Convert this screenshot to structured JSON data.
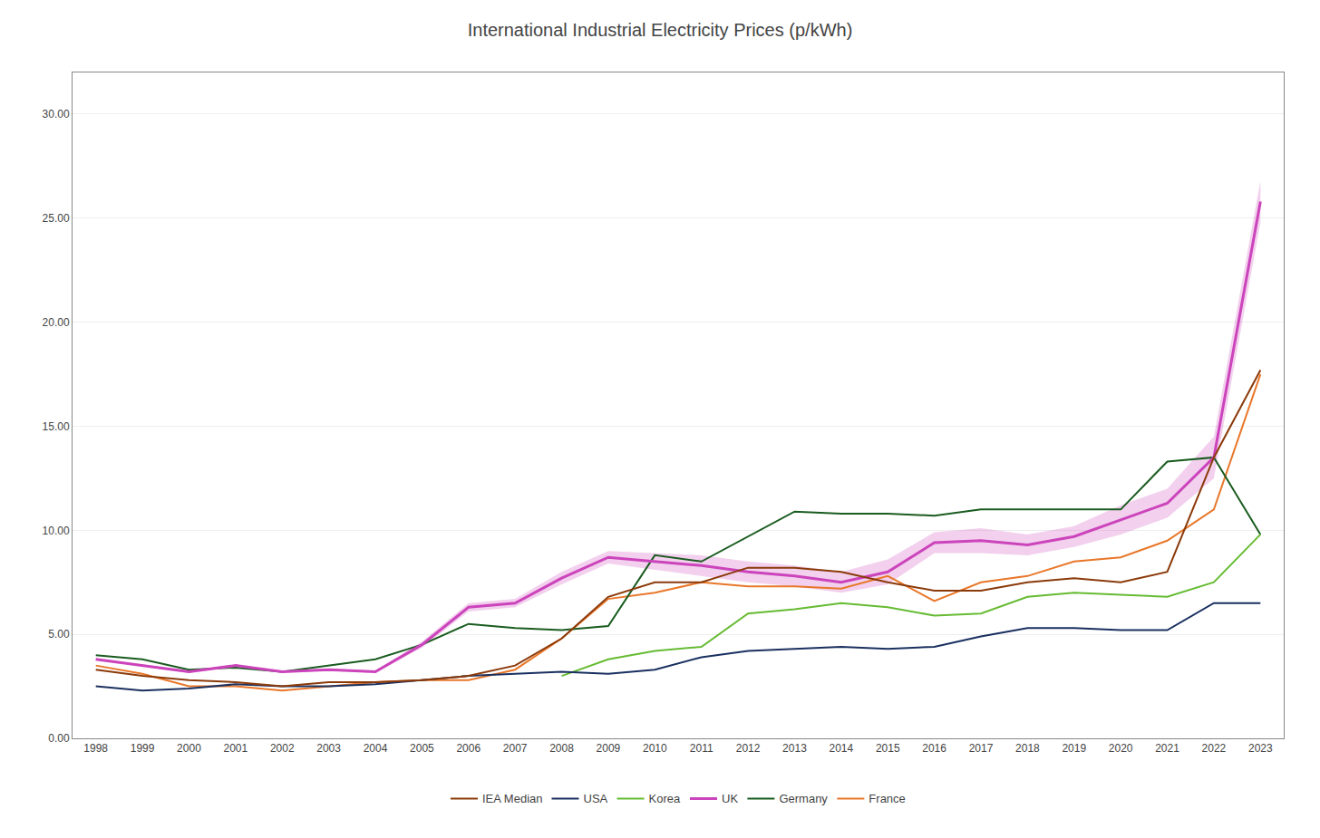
{
  "chart_data": {
    "type": "line",
    "title": "International Industrial Electricity Prices (p/kWh)",
    "x": [
      1998,
      1999,
      2000,
      2001,
      2002,
      2003,
      2004,
      2005,
      2006,
      2007,
      2008,
      2009,
      2010,
      2011,
      2012,
      2013,
      2014,
      2015,
      2016,
      2017,
      2018,
      2019,
      2020,
      2021,
      2022,
      2023
    ],
    "series": [
      {
        "name": "France",
        "color": "#E8772A",
        "values": [
          3.5,
          3.1,
          2.5,
          2.5,
          2.3,
          2.5,
          2.7,
          2.8,
          2.8,
          3.3,
          4.8,
          6.7,
          7.0,
          7.5,
          7.3,
          7.3,
          7.2,
          7.8,
          6.6,
          7.5,
          7.8,
          8.5,
          8.7,
          9.5,
          11.0,
          17.5
        ]
      },
      {
        "name": "Germany",
        "color": "#1A5C20",
        "values": [
          4.0,
          3.8,
          3.3,
          3.4,
          3.2,
          3.5,
          3.8,
          4.5,
          5.5,
          5.3,
          5.2,
          5.4,
          8.8,
          8.5,
          9.7,
          10.9,
          10.8,
          10.8,
          10.7,
          11.0,
          11.0,
          11.0,
          11.0,
          13.3,
          13.5,
          9.8
        ]
      },
      {
        "name": "UK",
        "color": "#CC44BB",
        "values": [
          3.8,
          3.5,
          3.2,
          3.5,
          3.2,
          3.3,
          3.2,
          4.5,
          6.3,
          6.5,
          7.7,
          8.7,
          8.5,
          8.3,
          8.0,
          7.8,
          7.5,
          8.0,
          9.4,
          9.5,
          9.3,
          9.7,
          10.5,
          11.3,
          13.5,
          25.8
        ],
        "upper": [
          3.85,
          3.55,
          3.25,
          3.55,
          3.25,
          3.35,
          3.25,
          4.65,
          6.5,
          6.7,
          8.0,
          9.0,
          8.9,
          8.8,
          8.5,
          8.3,
          8.0,
          8.6,
          9.9,
          10.1,
          9.8,
          10.2,
          11.2,
          12.0,
          14.5,
          26.8
        ],
        "lower": [
          3.75,
          3.45,
          3.15,
          3.45,
          3.15,
          3.25,
          3.15,
          4.35,
          6.1,
          6.3,
          7.4,
          8.4,
          8.1,
          7.8,
          7.5,
          7.3,
          7.0,
          7.4,
          8.9,
          8.9,
          8.8,
          9.2,
          9.8,
          10.6,
          12.5,
          24.8
        ]
      },
      {
        "name": "Korea",
        "color": "#66BB33",
        "values": [
          null,
          null,
          null,
          null,
          null,
          null,
          null,
          null,
          null,
          null,
          3.0,
          3.8,
          4.2,
          4.4,
          6.0,
          6.2,
          6.5,
          6.3,
          5.9,
          6.0,
          6.8,
          7.0,
          6.9,
          6.8,
          7.5,
          9.8
        ]
      },
      {
        "name": "USA",
        "color": "#1A3060",
        "values": [
          2.5,
          2.3,
          2.4,
          2.6,
          2.5,
          2.5,
          2.6,
          2.8,
          3.0,
          3.1,
          3.2,
          3.1,
          3.3,
          3.9,
          4.2,
          4.3,
          4.4,
          4.3,
          4.4,
          4.9,
          5.3,
          5.3,
          5.2,
          5.2,
          6.5,
          6.5
        ]
      },
      {
        "name": "IEA Median",
        "color": "#8B3A0A",
        "values": [
          3.3,
          3.0,
          2.8,
          2.7,
          2.5,
          2.7,
          2.7,
          2.8,
          3.0,
          3.5,
          4.8,
          6.8,
          7.5,
          7.5,
          8.2,
          8.2,
          8.0,
          7.5,
          7.1,
          7.1,
          7.5,
          7.7,
          7.5,
          8.0,
          13.5,
          17.7
        ]
      }
    ],
    "xlim": [
      1997.5,
      2023.5
    ],
    "xticks": [
      1998,
      1999,
      2000,
      2001,
      2002,
      2003,
      2004,
      2005,
      2006,
      2007,
      2008,
      2009,
      2010,
      2011,
      2012,
      2013,
      2014,
      2015,
      2016,
      2017,
      2018,
      2019,
      2020,
      2021,
      2022,
      2023
    ],
    "ylim": [
      0,
      32
    ],
    "yticks": [
      {
        "value": 0.0,
        "label": "0.00"
      },
      {
        "value": 5.0,
        "label": "5.00"
      },
      {
        "value": 10.0,
        "label": "10.00"
      },
      {
        "value": 15.0,
        "label": "15.00"
      },
      {
        "value": 20.0,
        "label": "20.00"
      },
      {
        "value": 25.0,
        "label": "25.00"
      },
      {
        "value": 30.0,
        "label": "30.00"
      }
    ],
    "grid": true,
    "legend": "bottom"
  }
}
